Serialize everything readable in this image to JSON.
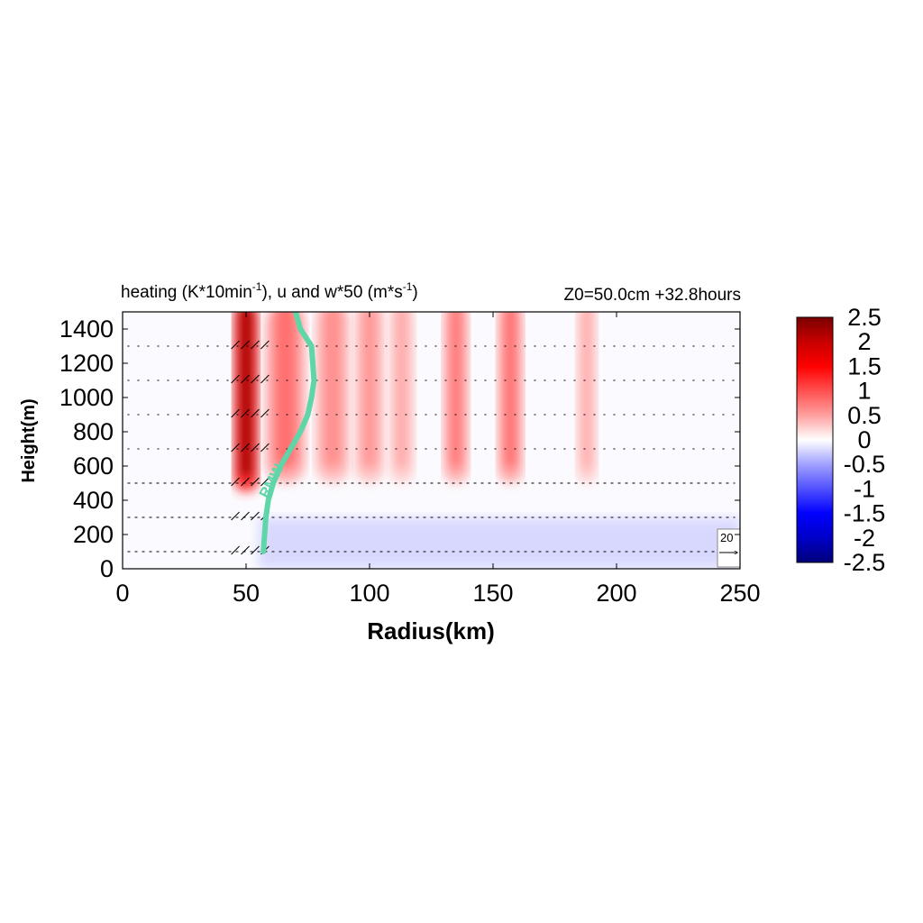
{
  "chart_data": {
    "type": "heatmap",
    "title": "heating (K*10min",
    "title_sup1": "-1",
    "title_mid": "), u and w*50 (m*s",
    "title_sup2": "-1",
    "title_end": ")",
    "title_right": "Z0=50.0cm  +32.8hours",
    "xlabel": "Radius(km)",
    "ylabel": "Height(m)",
    "xlim": [
      0,
      250
    ],
    "ylim": [
      0,
      1500
    ],
    "xticks": [
      "0",
      "50",
      "100",
      "150",
      "200",
      "250"
    ],
    "yticks": [
      "0",
      "200",
      "400",
      "600",
      "800",
      "1000",
      "1200",
      "1400"
    ],
    "colorbar": {
      "range": [
        -2.5,
        2.5
      ],
      "labels": [
        "2.5",
        "2",
        "1.5",
        "1",
        "0.5",
        "0",
        "-0.5",
        "-1",
        "-1.5",
        "-2",
        "-2.5"
      ]
    },
    "rmw_label": "RMW",
    "rmw_curve": [
      [
        57,
        100
      ],
      [
        57.5,
        200
      ],
      [
        58,
        300
      ],
      [
        59,
        400
      ],
      [
        61,
        500
      ],
      [
        64,
        600
      ],
      [
        68,
        700
      ],
      [
        72,
        800
      ],
      [
        75,
        900
      ],
      [
        76.5,
        1000
      ],
      [
        77.5,
        1100
      ],
      [
        77,
        1200
      ],
      [
        76.5,
        1300
      ],
      [
        72,
        1400
      ],
      [
        70,
        1500
      ]
    ],
    "heating_bands": [
      {
        "center": 50,
        "width": 5,
        "peak": 2.2,
        "bottom": 450
      },
      {
        "center": 66,
        "width": 8,
        "peak": 0.8,
        "bottom": 500
      },
      {
        "center": 85,
        "width": 7,
        "peak": 0.6,
        "bottom": 500
      },
      {
        "center": 100,
        "width": 6,
        "peak": 0.55,
        "bottom": 500
      },
      {
        "center": 113,
        "width": 5,
        "peak": 0.45,
        "bottom": 500
      },
      {
        "center": 135,
        "width": 5,
        "peak": 0.75,
        "bottom": 500
      },
      {
        "center": 157,
        "width": 5,
        "peak": 0.8,
        "bottom": 500
      },
      {
        "center": 188,
        "width": 4,
        "peak": 0.45,
        "bottom": 500
      }
    ],
    "cooling_layer": {
      "from_x": 55,
      "to_x": 250,
      "top": 300,
      "value": -0.35
    },
    "wind_rows": [
      100,
      300,
      500,
      700,
      900,
      1100,
      1300
    ],
    "reference_vector": "20"
  }
}
